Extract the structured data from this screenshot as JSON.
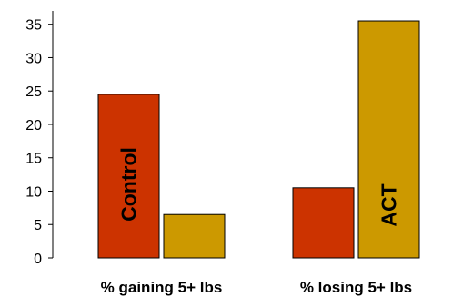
{
  "chart_data": {
    "type": "bar",
    "title": "",
    "xlabel": "",
    "ylabel": "",
    "ylim": [
      0,
      37
    ],
    "yticks": [
      0,
      5,
      10,
      15,
      20,
      25,
      30,
      35
    ],
    "categories": [
      "% gaining 5+ lbs",
      "% losing 5+ lbs"
    ],
    "series": [
      {
        "name": "Control",
        "color": "#cc3300",
        "values": [
          24.5,
          10.5
        ]
      },
      {
        "name": "ACT",
        "color": "#cc9900",
        "values": [
          6.5,
          35.5
        ]
      }
    ],
    "grid": false,
    "legend": "none"
  }
}
